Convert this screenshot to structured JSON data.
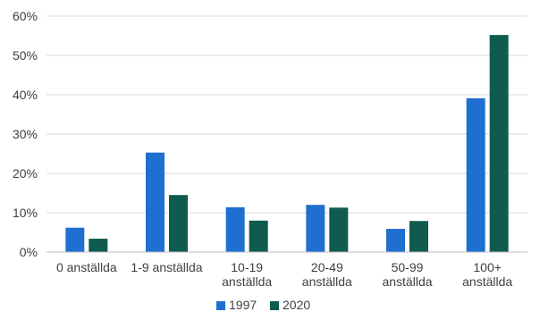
{
  "chart_data": {
    "type": "bar",
    "categories": [
      [
        "0 anställda"
      ],
      [
        "1-9 anställda"
      ],
      [
        "10-19",
        "anställda"
      ],
      [
        "20-49",
        "anställda"
      ],
      [
        "50-99",
        "anställda"
      ],
      [
        "100+",
        "anställda"
      ]
    ],
    "series": [
      {
        "name": "1997",
        "color": "#1f6fd1",
        "values": [
          6.2,
          25.3,
          11.4,
          12.0,
          5.9,
          39.1
        ]
      },
      {
        "name": "2020",
        "color": "#0f5b4f",
        "values": [
          3.4,
          14.5,
          8.0,
          11.3,
          7.9,
          55.2
        ]
      }
    ],
    "title": "",
    "xlabel": "",
    "ylabel": "",
    "ylim": [
      0,
      60
    ],
    "yticks": [
      "0%",
      "10%",
      "20%",
      "30%",
      "40%",
      "50%",
      "60%"
    ],
    "grid": true,
    "legend_position": "bottom"
  }
}
